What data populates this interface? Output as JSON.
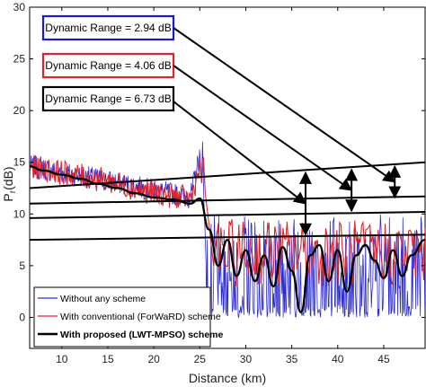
{
  "chart_data": {
    "type": "line",
    "title": "",
    "xlabel": "Distance (km)",
    "ylabel_main": "P",
    "ylabel_sub": "r",
    "ylabel_unit": "(dB)",
    "xlim": [
      6.5,
      49.5
    ],
    "ylim": [
      -3,
      30
    ],
    "xticks": [
      10,
      15,
      20,
      25,
      30,
      35,
      40,
      45
    ],
    "yticks": [
      0,
      5,
      10,
      15,
      20,
      25,
      30
    ],
    "grid": false,
    "legend_position": "bottom-left",
    "series": [
      {
        "name": "Without any scheme",
        "color": "#2b2bd6",
        "description_values": "noisy trace; near 14.5 dB at 6.5 km decaying to about 11.5 dB at 24 km; spike to 17 dB at 25.3 km; beyond 25.5 km fluctuates rapidly between 0 and about 10 dB",
        "x": [
          6.5,
          10,
          15,
          20,
          24,
          25.3,
          26,
          30,
          35,
          40,
          45,
          49.5
        ],
        "y": [
          14.6,
          14,
          13.2,
          12.3,
          11.6,
          17.0,
          5,
          5,
          5,
          5,
          5,
          5
        ]
      },
      {
        "name": "With conventional (ForWaRD) scheme",
        "color": "#e0232b",
        "x": [
          6.5,
          10,
          15,
          20,
          24,
          25.4,
          27,
          30,
          35,
          40,
          45,
          49.5
        ],
        "y": [
          14.6,
          14,
          13.2,
          12,
          11.5,
          15.5,
          5.5,
          5.5,
          5.3,
          5.5,
          5.5,
          6.5
        ]
      },
      {
        "name": "With proposed (LWT-MPSO) scheme",
        "color": "#000000",
        "x": [
          6.5,
          8,
          10,
          12,
          14,
          16,
          18,
          20,
          22,
          24,
          25,
          26,
          27,
          28,
          29,
          30,
          31,
          32,
          33,
          34,
          35,
          36,
          37,
          38,
          39,
          40,
          41,
          42,
          43,
          44,
          45,
          46,
          47,
          48,
          49.5
        ],
        "y": [
          14.6,
          14.2,
          13.8,
          13.4,
          12.9,
          12.5,
          12.0,
          11.6,
          11.4,
          11.0,
          11.5,
          8.5,
          5.0,
          7.5,
          4.0,
          6.5,
          3.5,
          6.0,
          3.0,
          6.8,
          4.5,
          0.5,
          6.0,
          7.0,
          3.5,
          6.5,
          2.5,
          6.0,
          7.0,
          5.5,
          3.8,
          6.5,
          4.0,
          6.0,
          7.5
        ]
      }
    ],
    "reference_lines": [
      {
        "x": [
          6.5,
          49.5
        ],
        "y": [
          12.5,
          15.0
        ]
      },
      {
        "x": [
          6.5,
          49.5
        ],
        "y": [
          11.0,
          11.7
        ]
      },
      {
        "x": [
          6.5,
          49.5
        ],
        "y": [
          9.6,
          10.2
        ]
      },
      {
        "x": [
          6.5,
          49.5
        ],
        "y": [
          7.5,
          8.0
        ]
      }
    ],
    "dynamic_range_markers": [
      {
        "x": 36.5,
        "y_bottom": 8.0,
        "y_top": 14.0
      },
      {
        "x": 41.5,
        "y_bottom": 10.3,
        "y_top": 14.3
      },
      {
        "x": 46.2,
        "y_bottom": 11.6,
        "y_top": 14.6
      }
    ],
    "annotations": [
      {
        "text": "Dynamic Range = 2.94 dB",
        "box_color": "#1a1ad6",
        "points_to": {
          "x": 46.2,
          "y": 13.1
        }
      },
      {
        "text": "Dynamic Range = 4.06 dB",
        "box_color": "#e0232b",
        "points_to": {
          "x": 41.5,
          "y": 12.3
        }
      },
      {
        "text": "Dynamic Range = 6.73 dB",
        "box_color": "#000000",
        "points_to": {
          "x": 36.5,
          "y": 11.0
        }
      }
    ]
  }
}
